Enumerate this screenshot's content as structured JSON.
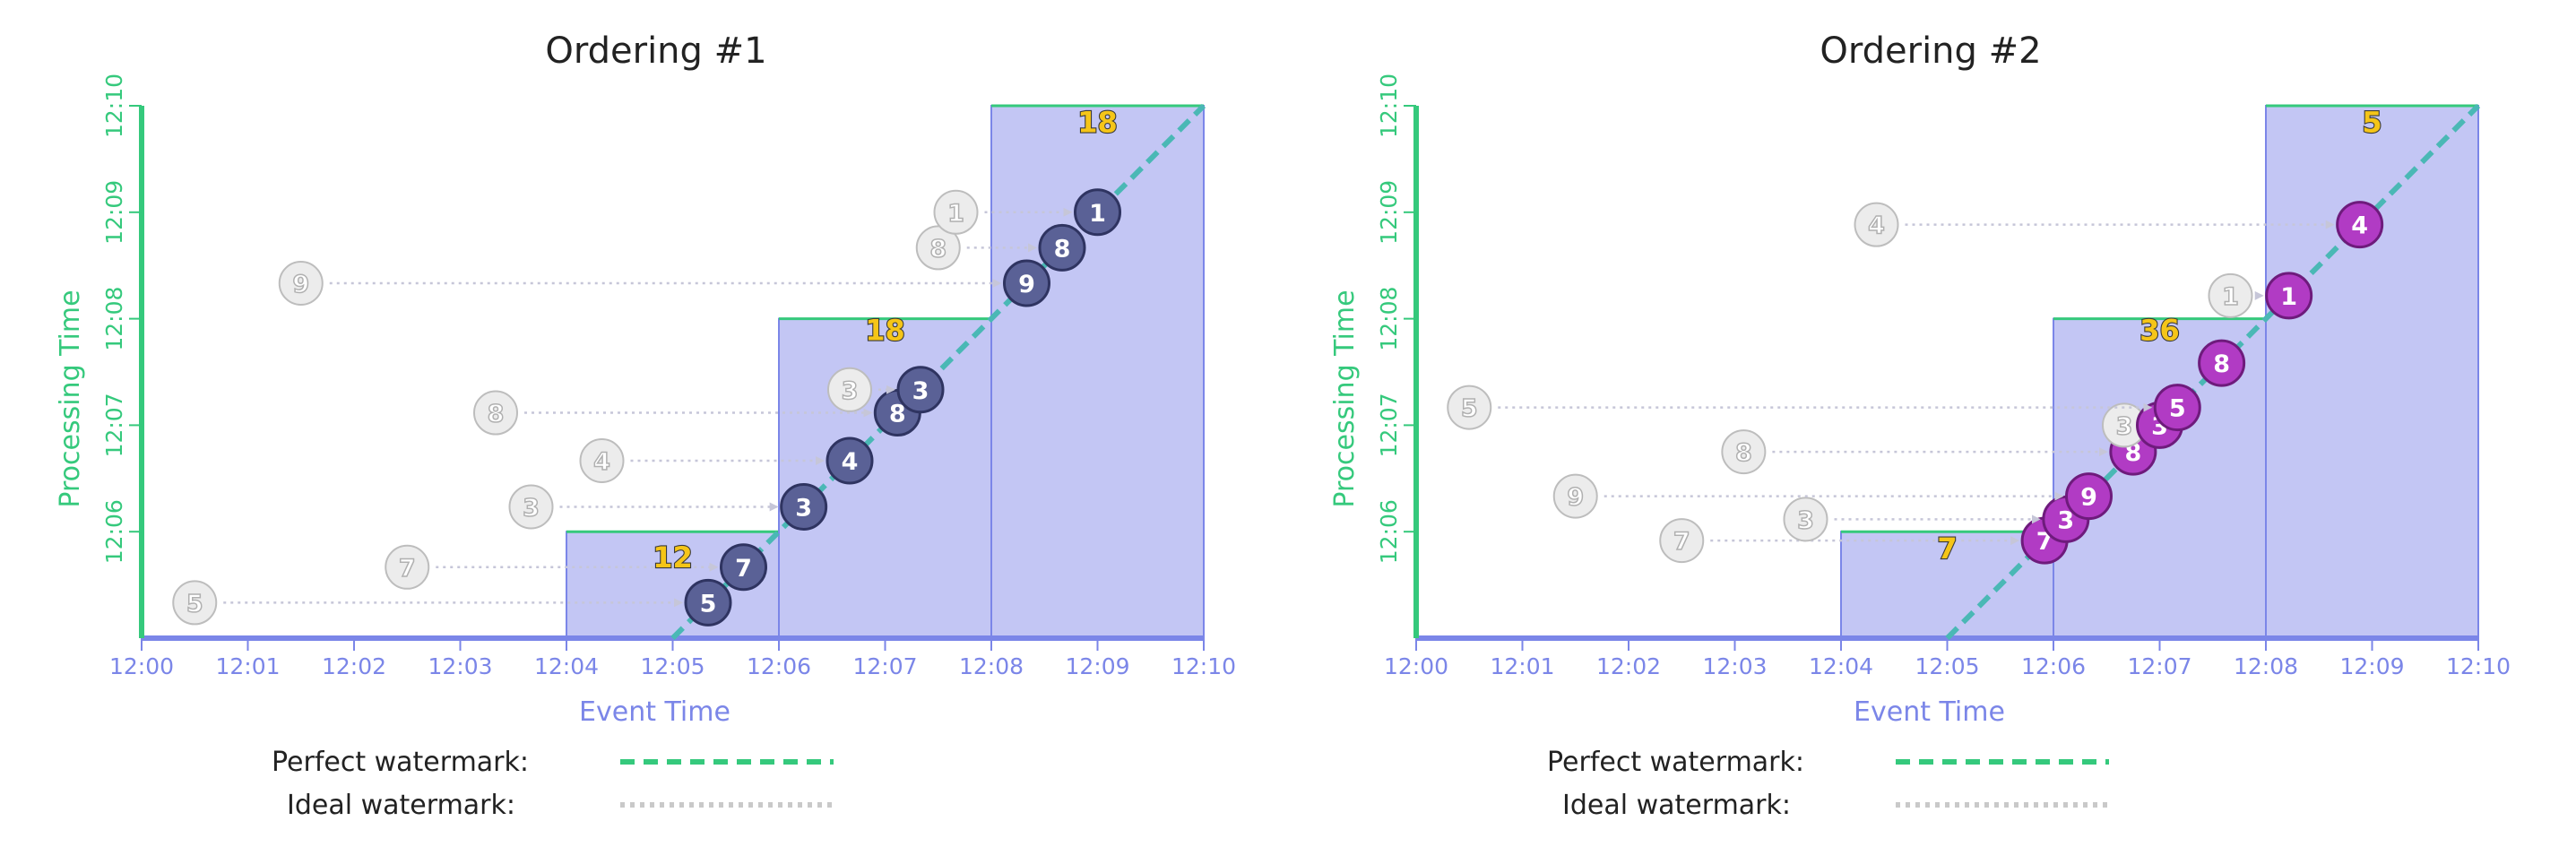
{
  "colors": {
    "axis_x": "#7b86e8",
    "axis_y": "#35c97c",
    "pane_fill": "#c3c6f4",
    "pane_stroke": "#7b86e8",
    "pane_top": "#35c97c",
    "perfect_watermark": "#4ab8b5",
    "ideal_watermark": "#c9c9c9",
    "ghost_fill": "#ececec",
    "ghost_stroke": "#bdbdbd",
    "ghost_text": "#b0b0b0",
    "dot_fill_1": "#5a6196",
    "dot_stroke_1": "#2f3461",
    "dot_fill_2": "#b13bc4",
    "dot_stroke_2": "#6e1b7c",
    "sum_fill": "#f5c518",
    "arrow": "#c6c6d8"
  },
  "legend": {
    "perfect_label": "Perfect watermark:",
    "ideal_label": "Ideal watermark:"
  },
  "chart_data": [
    {
      "type": "scatter",
      "title": "Ordering #1",
      "xlabel": "Event Time",
      "ylabel": "Processing Time",
      "x_ticks": [
        "12:00",
        "12:01",
        "12:02",
        "12:03",
        "12:04",
        "12:05",
        "12:06",
        "12:07",
        "12:08",
        "12:09",
        "12:10"
      ],
      "y_ticks": [
        "12:06",
        "12:07",
        "12:08",
        "12:09",
        "12:10"
      ],
      "xlim": [
        "12:00",
        "12:10"
      ],
      "ylim": [
        "12:05",
        "12:10"
      ],
      "panes": [
        {
          "x_start": "12:04",
          "x_end": "12:06",
          "trigger_y": "12:06",
          "sum": "12",
          "sum_at": {
            "x": "12:05",
            "y": "12:05:40"
          }
        },
        {
          "x_start": "12:06",
          "x_end": "12:08",
          "trigger_y": "12:08",
          "sum": "18",
          "sum_at": {
            "x": "12:07",
            "y": "12:07:48"
          }
        },
        {
          "x_start": "12:08",
          "x_end": "12:10",
          "trigger_y": "12:10",
          "sum": "18",
          "sum_at": {
            "x": "12:09",
            "y": "12:09:45"
          }
        }
      ],
      "perfect_watermark": {
        "from": {
          "x": "12:05",
          "y": "12:05"
        },
        "to": {
          "x": "12:10",
          "y": "12:10"
        }
      },
      "events": [
        {
          "value": "5",
          "event_x": "12:00:30",
          "ghost_x": "12:00:30",
          "y": "12:05:20",
          "dot_x": "12:05:20",
          "ghost_show": true
        },
        {
          "value": "7",
          "event_x": "12:02:30",
          "ghost_x": "12:02:30",
          "y": "12:05:40",
          "dot_x": "12:05:40",
          "ghost_show": true
        },
        {
          "value": "3",
          "event_x": "12:03:40",
          "ghost_x": "12:03:40",
          "y": "12:06:14",
          "dot_x": "12:06:14",
          "ghost_show": true
        },
        {
          "value": "4",
          "event_x": "12:04:20",
          "ghost_x": "12:04:20",
          "y": "12:06:40",
          "dot_x": "12:06:40",
          "ghost_show": true
        },
        {
          "value": "8",
          "event_x": "12:03:20",
          "ghost_x": "12:03:20",
          "y": "12:07:07",
          "dot_x": "12:07:07",
          "ghost_show": true
        },
        {
          "value": "3",
          "event_x": "12:06:40",
          "ghost_x": "12:06:40",
          "y": "12:07:20",
          "dot_x": "12:07:20",
          "ghost_show": true
        },
        {
          "value": "9",
          "event_x": "12:01:30",
          "ghost_x": "12:01:30",
          "y": "12:08:20",
          "dot_x": "12:08:20",
          "ghost_show": true
        },
        {
          "value": "8",
          "event_x": "12:07:30",
          "ghost_x": "12:07:30",
          "y": "12:08:40",
          "dot_x": "12:08:40",
          "ghost_show": true
        },
        {
          "value": "1",
          "event_x": "12:07:40",
          "ghost_x": "12:07:40",
          "y": "12:09:00",
          "dot_x": "12:09:00",
          "ghost_show": true
        }
      ]
    },
    {
      "type": "scatter",
      "title": "Ordering #2",
      "xlabel": "Event Time",
      "ylabel": "Processing Time",
      "x_ticks": [
        "12:00",
        "12:01",
        "12:02",
        "12:03",
        "12:04",
        "12:05",
        "12:06",
        "12:07",
        "12:08",
        "12:09",
        "12:10"
      ],
      "y_ticks": [
        "12:06",
        "12:07",
        "12:08",
        "12:09",
        "12:10"
      ],
      "xlim": [
        "12:00",
        "12:10"
      ],
      "ylim": [
        "12:05",
        "12:10"
      ],
      "panes": [
        {
          "x_start": "12:04",
          "x_end": "12:06",
          "trigger_y": "12:06",
          "sum": "7",
          "sum_at": {
            "x": "12:05",
            "y": "12:05:45"
          }
        },
        {
          "x_start": "12:06",
          "x_end": "12:08",
          "trigger_y": "12:08",
          "sum": "36",
          "sum_at": {
            "x": "12:07",
            "y": "12:07:48"
          }
        },
        {
          "x_start": "12:08",
          "x_end": "12:10",
          "trigger_y": "12:10",
          "sum": "5",
          "sum_at": {
            "x": "12:09",
            "y": "12:09:45"
          }
        }
      ],
      "perfect_watermark": {
        "from": {
          "x": "12:05",
          "y": "12:05"
        },
        "to": {
          "x": "12:10",
          "y": "12:10"
        }
      },
      "events": [
        {
          "value": "7",
          "event_x": "12:02:30",
          "ghost_x": "12:02:30",
          "y": "12:05:55",
          "dot_x": "12:05:55",
          "ghost_show": true
        },
        {
          "value": "3",
          "event_x": "12:03:40",
          "ghost_x": "12:03:40",
          "y": "12:06:07",
          "dot_x": "12:06:07",
          "ghost_show": true
        },
        {
          "value": "9",
          "event_x": "12:01:30",
          "ghost_x": "12:01:30",
          "y": "12:06:20",
          "dot_x": "12:06:20",
          "ghost_show": true
        },
        {
          "value": "8",
          "event_x": "12:03:05",
          "ghost_x": "12:03:05",
          "y": "12:06:45",
          "dot_x": "12:06:45",
          "ghost_show": true
        },
        {
          "value": "3",
          "event_x": "12:06:40",
          "ghost_x": "12:06:40",
          "y": "12:07:00",
          "dot_x": "12:07:00",
          "ghost_show": true
        },
        {
          "value": "5",
          "event_x": "12:00:30",
          "ghost_x": "12:00:30",
          "y": "12:07:10",
          "dot_x": "12:07:10",
          "ghost_show": true
        },
        {
          "value": "8",
          "event_x": "12:07:30",
          "ghost_x": "12:07:30",
          "y": "12:07:35",
          "dot_x": "12:07:35",
          "ghost_show": false
        },
        {
          "value": "1",
          "event_x": "12:07:40",
          "ghost_x": "12:07:40",
          "y": "12:08:13",
          "dot_x": "12:08:13",
          "ghost_show": true
        },
        {
          "value": "4",
          "event_x": "12:04:20",
          "ghost_x": "12:04:20",
          "y": "12:08:53",
          "dot_x": "12:08:53",
          "ghost_show": true
        }
      ]
    }
  ]
}
